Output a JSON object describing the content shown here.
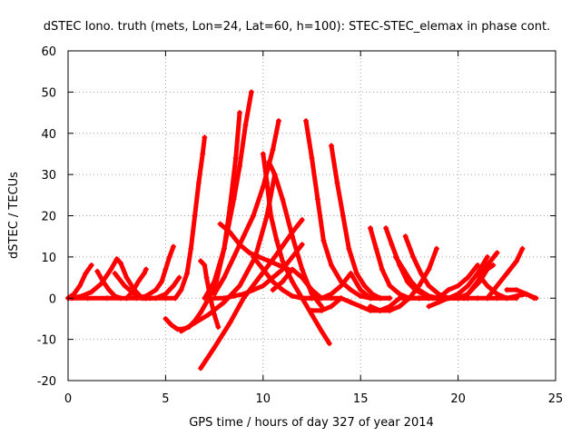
{
  "chart_data": {
    "type": "scatter",
    "title": "dSTEC Iono. truth (mets, Lon=24, Lat=60, h=100): STEC-STEC_elemax in phase cont.",
    "xlabel": "GPS time / hours of day 327 of year 2014",
    "ylabel": "dSTEC  / TECUs",
    "xlim": [
      0,
      25
    ],
    "ylim": [
      -20,
      60
    ],
    "xticks": [
      0,
      5,
      10,
      15,
      20,
      25
    ],
    "yticks": [
      -20,
      -10,
      0,
      10,
      20,
      30,
      40,
      50,
      60
    ],
    "grid": true,
    "marker": "plus",
    "color": "#ff0000",
    "series": [
      {
        "x": [
          0.0,
          0.3,
          0.6,
          0.9,
          1.2
        ],
        "y": [
          0,
          1,
          3,
          6,
          8
        ]
      },
      {
        "x": [
          0.2,
          0.7,
          1.2,
          1.7,
          2.2,
          2.5,
          2.7,
          3.0,
          3.4,
          3.8
        ],
        "y": [
          0,
          0.5,
          1.5,
          3.5,
          7,
          9.5,
          8.5,
          5,
          2,
          0
        ]
      },
      {
        "x": [
          1.5,
          1.8,
          2.1,
          2.4,
          2.7
        ],
        "y": [
          6.5,
          4,
          2,
          0.5,
          0
        ]
      },
      {
        "x": [
          2.4,
          2.9,
          3.4,
          3.9,
          4.2
        ],
        "y": [
          6,
          3,
          1,
          0,
          0
        ]
      },
      {
        "x": [
          3.0,
          3.3,
          3.6,
          3.9,
          4.0
        ],
        "y": [
          0,
          1.5,
          4,
          6,
          7
        ]
      },
      {
        "x": [
          3.5,
          4.0,
          4.5,
          4.8,
          5.0,
          5.2,
          5.4
        ],
        "y": [
          0,
          0.5,
          2,
          4,
          7,
          10,
          12.5
        ]
      },
      {
        "x": [
          4.0,
          4.5,
          5.0,
          5.4,
          5.7
        ],
        "y": [
          0,
          0,
          1,
          3,
          5
        ]
      },
      {
        "x": [
          0.0,
          1.0,
          2.0,
          3.0,
          4.0,
          5.0,
          5.5
        ],
        "y": [
          0,
          0,
          0,
          0,
          0,
          0,
          0
        ]
      },
      {
        "x": [
          5.5,
          5.8,
          6.1,
          6.3,
          6.5,
          6.7,
          6.9,
          7.0
        ],
        "y": [
          0,
          2,
          6,
          12,
          20,
          28,
          35,
          39
        ]
      },
      {
        "x": [
          5.0,
          5.3,
          5.6,
          5.9,
          6.2,
          6.5,
          6.8,
          7.1
        ],
        "y": [
          -5,
          -6.5,
          -7.5,
          -7.5,
          -7,
          -5.5,
          -3.5,
          -1
        ]
      },
      {
        "x": [
          6.8,
          7.0,
          7.1,
          7.3,
          7.5,
          7.7
        ],
        "y": [
          9,
          8,
          5,
          0,
          -4,
          -7
        ]
      },
      {
        "x": [
          6.8,
          7.5,
          8.3,
          9.0,
          9.8,
          10.6,
          11.5,
          12.0
        ],
        "y": [
          -17,
          -12,
          -6,
          0,
          5,
          10,
          16,
          19
        ]
      },
      {
        "x": [
          7.0,
          7.5,
          8.0,
          8.5,
          8.8,
          9.1,
          9.4
        ],
        "y": [
          0,
          4,
          12,
          24,
          32,
          42,
          50
        ]
      },
      {
        "x": [
          7.2,
          7.6,
          8.0,
          8.3,
          8.6,
          8.8
        ],
        "y": [
          0,
          4,
          12,
          22,
          34,
          45
        ]
      },
      {
        "x": [
          7.5,
          8.0,
          8.5,
          9.0,
          9.5,
          10.0,
          10.5,
          10.8
        ],
        "y": [
          1,
          5,
          10,
          15,
          20,
          27,
          36,
          43
        ]
      },
      {
        "x": [
          5.8,
          6.5,
          7.2,
          8.0,
          8.8,
          9.6,
          10.2,
          10.6
        ],
        "y": [
          -8,
          -6,
          -4,
          -1,
          3,
          10,
          20,
          30
        ]
      },
      {
        "x": [
          7.5,
          8.0,
          8.5,
          9.0,
          9.5,
          10.0,
          10.5,
          11.0,
          11.5,
          12.0
        ],
        "y": [
          0,
          0,
          0.5,
          1,
          2,
          3,
          5,
          7,
          10,
          13
        ]
      },
      {
        "x": [
          7.8,
          8.3,
          8.8,
          9.3,
          9.8,
          10.3,
          10.8,
          11.3
        ],
        "y": [
          18,
          16,
          13,
          11,
          10,
          9,
          8,
          7
        ]
      },
      {
        "x": [
          10.0,
          10.2,
          10.4,
          10.7,
          11.0,
          11.5,
          12.0,
          12.5,
          13.0,
          13.4
        ],
        "y": [
          35,
          28,
          20,
          14,
          9,
          4,
          0,
          -4,
          -8,
          -11
        ]
      },
      {
        "x": [
          10.3,
          10.6,
          11.0,
          11.5,
          12.0,
          12.5,
          13.0
        ],
        "y": [
          33,
          30,
          24,
          15,
          7,
          1,
          -2
        ]
      },
      {
        "x": [
          9.5,
          10.0,
          10.5,
          11.0,
          11.5,
          12.0,
          12.5
        ],
        "y": [
          10,
          7,
          4,
          2,
          0.5,
          0,
          0
        ]
      },
      {
        "x": [
          10.5,
          11.0,
          11.5,
          12.0,
          12.5,
          13.0,
          13.5,
          14.0
        ],
        "y": [
          2,
          4,
          7,
          5,
          2,
          0,
          0,
          0
        ]
      },
      {
        "x": [
          12.2,
          12.5,
          12.8,
          13.1,
          13.5,
          14.0,
          14.5,
          15.0,
          15.5,
          16.0
        ],
        "y": [
          43,
          34,
          24,
          14,
          8,
          4,
          2,
          0.5,
          0,
          0
        ]
      },
      {
        "x": [
          13.5,
          13.8,
          14.1,
          14.4,
          14.8,
          15.2,
          15.6,
          16.0,
          16.5
        ],
        "y": [
          37,
          28,
          20,
          12,
          6,
          3,
          1,
          0,
          0
        ]
      },
      {
        "x": [
          12.0,
          12.5,
          13.0,
          13.5,
          14.0,
          14.5,
          15.0,
          15.5,
          16.0,
          16.5
        ],
        "y": [
          0,
          0,
          0,
          1,
          3,
          6,
          2,
          0,
          0,
          0
        ]
      },
      {
        "x": [
          12.5,
          13.0,
          13.5,
          14.0,
          14.5,
          15.0,
          15.5,
          16.0,
          16.5,
          17.0
        ],
        "y": [
          -3,
          -3,
          -2,
          0,
          -1,
          -2,
          -3,
          -3,
          -2,
          0
        ]
      },
      {
        "x": [
          15.5,
          15.8,
          16.1,
          16.5,
          17.0,
          17.5,
          18.0,
          18.5
        ],
        "y": [
          17,
          12,
          7,
          3,
          1,
          0,
          0,
          0
        ]
      },
      {
        "x": [
          16.3,
          16.6,
          17.0,
          17.4,
          17.8,
          18.2,
          18.7,
          19.2
        ],
        "y": [
          17,
          13,
          8,
          4,
          2,
          1,
          0,
          0
        ]
      },
      {
        "x": [
          16.8,
          17.2,
          17.6,
          18.0,
          18.5,
          19.0
        ],
        "y": [
          10,
          7,
          4,
          2,
          0.5,
          0
        ]
      },
      {
        "x": [
          17.3,
          17.7,
          18.1,
          18.5,
          19.0,
          19.5,
          20.0
        ],
        "y": [
          15,
          10,
          6,
          3,
          1,
          0,
          0
        ]
      },
      {
        "x": [
          15.5,
          16.0,
          16.5,
          17.0,
          17.5,
          18.0,
          18.5,
          18.9
        ],
        "y": [
          -2,
          -3,
          -3,
          -2,
          0,
          3,
          7,
          12
        ]
      },
      {
        "x": [
          17.0,
          17.5,
          18.0,
          18.5,
          19.0,
          19.5,
          20.0,
          20.5
        ],
        "y": [
          0,
          0,
          0,
          0,
          0,
          0,
          0,
          0
        ]
      },
      {
        "x": [
          18.0,
          18.5,
          19.0,
          19.5,
          20.0,
          20.5,
          21.0,
          21.5
        ],
        "y": [
          0,
          0,
          0,
          0,
          1,
          3,
          6,
          10
        ]
      },
      {
        "x": [
          18.5,
          19.0,
          19.5,
          20.0,
          20.5,
          21.0,
          21.5,
          22.0
        ],
        "y": [
          -2,
          -1,
          0,
          0,
          1,
          4,
          8,
          11
        ]
      },
      {
        "x": [
          19.0,
          19.5,
          20.0,
          20.5,
          21.0
        ],
        "y": [
          0,
          2,
          3,
          5,
          8
        ]
      },
      {
        "x": [
          20.3,
          20.7,
          21.1,
          21.5,
          21.8
        ],
        "y": [
          0,
          2,
          4,
          7,
          8
        ]
      },
      {
        "x": [
          21.0,
          21.5,
          22.0,
          22.5,
          23.0
        ],
        "y": [
          6,
          3,
          1,
          0,
          0
        ]
      },
      {
        "x": [
          21.5,
          22.0,
          22.5,
          23.0,
          23.3
        ],
        "y": [
          0,
          3,
          6,
          9,
          12
        ]
      },
      {
        "x": [
          20.0,
          20.5,
          21.0,
          21.5,
          22.0,
          22.5,
          23.0,
          23.5,
          24.0
        ],
        "y": [
          0,
          0,
          0,
          0,
          0,
          0,
          0.5,
          1,
          0
        ]
      },
      {
        "x": [
          22.5,
          23.0,
          23.5,
          23.9
        ],
        "y": [
          2,
          2,
          1,
          0
        ]
      }
    ]
  }
}
